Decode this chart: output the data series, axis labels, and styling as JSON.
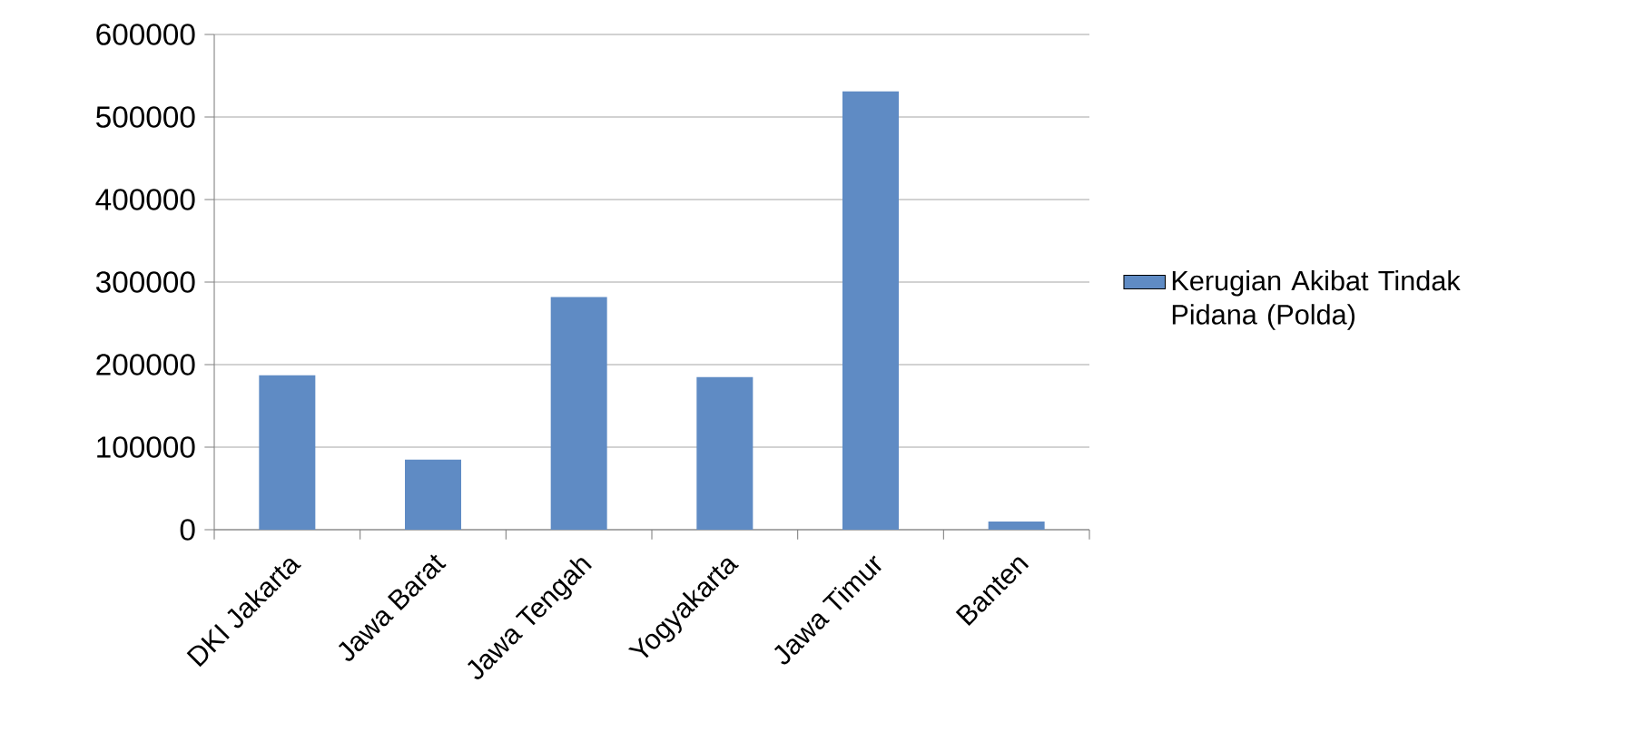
{
  "chart_data": {
    "type": "bar",
    "categories": [
      "DKI Jakarta",
      "Jawa Barat",
      "Jawa Tengah",
      "Yogyakarta",
      "Jawa Timur",
      "Banten"
    ],
    "series": [
      {
        "name": "Kerugian Akibat Tindak Pidana (Polda)",
        "color": "#5f8bc4",
        "values": [
          187000,
          85000,
          282000,
          185000,
          531000,
          10000
        ]
      }
    ],
    "ylim": [
      0,
      600000
    ],
    "yticks": [
      0,
      100000,
      200000,
      300000,
      400000,
      500000,
      600000
    ],
    "grid": "y",
    "legend": "right"
  }
}
